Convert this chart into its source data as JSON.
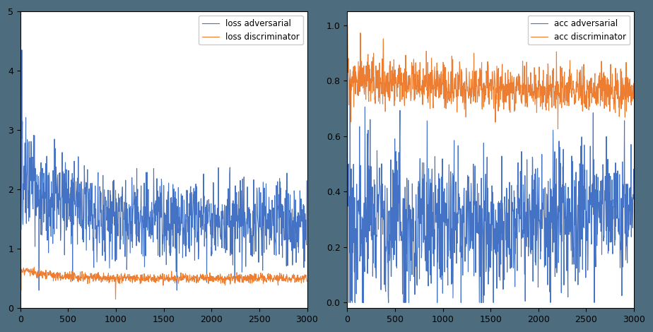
{
  "n_iterations": 3000,
  "color_blue": "#4472C4",
  "color_orange": "#ED7D31",
  "legend_loss": [
    "loss adversarial",
    "loss discriminator"
  ],
  "legend_acc": [
    "acc adversarial",
    "acc discriminator"
  ],
  "figsize": [
    9.24,
    4.7
  ],
  "dpi": 100,
  "xlim": [
    0,
    3000
  ],
  "loss_ylim": [
    0,
    5
  ],
  "acc_ylim_min": -0.02,
  "acc_ylim_max": 1.05,
  "background_color": "#4d6d7e",
  "axes_facecolor": "#ffffff",
  "loss_yticks": [
    0,
    1,
    2,
    3,
    4,
    5
  ],
  "acc_yticks": [
    0.0,
    0.2,
    0.4,
    0.6,
    0.8,
    1.0
  ],
  "xticks": [
    0,
    500,
    1000,
    1500,
    2000,
    2500,
    3000
  ]
}
